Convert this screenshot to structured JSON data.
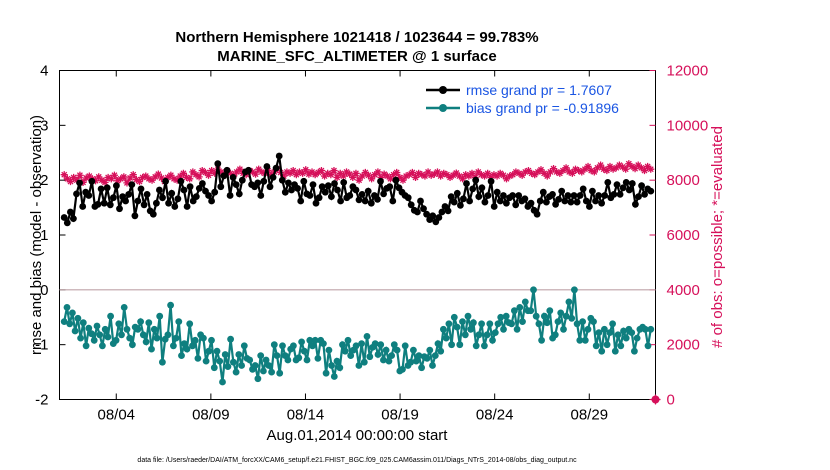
{
  "chart_data": {
    "type": "line",
    "title": "Northern Hemisphere 1021418 / 1023644 = 99.783%",
    "subtitle": "MARINE_SFC_ALTIMETER @ 1 surface",
    "xlabel": "Aug.01,2014 00:00:00 start",
    "ylabel_left": "rmse and bias (model - observation)",
    "ylabel_right": "# of obs: o=possible; *=evaluated",
    "xlim": [
      1.0,
      32.5
    ],
    "ylim_left": [
      -2,
      4
    ],
    "ylim_right": [
      0,
      12000
    ],
    "x_ticks": [
      4,
      9,
      14,
      19,
      24,
      29
    ],
    "x_tick_labels": [
      "08/04",
      "08/09",
      "08/14",
      "08/19",
      "08/24",
      "08/29"
    ],
    "y_ticks_left": [
      -2,
      -1,
      0,
      1,
      2,
      3,
      4
    ],
    "y_ticks_right": [
      0,
      2000,
      4000,
      6000,
      8000,
      10000,
      12000
    ],
    "zero_line": 0,
    "colors": {
      "rmse": "#000000",
      "bias": "#0f7f7f",
      "obs": "#d6105a",
      "legend_text": "#1a55e3"
    },
    "legend_position": "top-right",
    "series": [
      {
        "name": "rmse grand pr = 1.7607",
        "axis": "left",
        "values": [
          1.32,
          1.22,
          1.42,
          1.3,
          1.75,
          1.95,
          1.52,
          1.78,
          1.72,
          1.98,
          1.52,
          1.56,
          1.84,
          1.58,
          1.86,
          1.55,
          1.68,
          1.9,
          1.48,
          1.7,
          1.62,
          1.74,
          1.92,
          1.35,
          1.62,
          1.84,
          1.55,
          1.74,
          1.44,
          1.38,
          1.58,
          1.82,
          1.68,
          1.98,
          1.58,
          1.76,
          1.52,
          1.66,
          1.98,
          1.82,
          1.52,
          1.88,
          1.62,
          1.7,
          1.85,
          1.94,
          1.8,
          1.72,
          1.62,
          1.78,
          2.3,
          1.88,
          2.08,
          2.18,
          1.72,
          2.05,
          1.92,
          1.75,
          2.0,
          2.15,
          2.18,
          1.92,
          1.88,
          1.95,
          1.72,
          1.98,
          2.25,
          1.88,
          2.05,
          2.22,
          2.44,
          2.0,
          1.78,
          1.95,
          1.82,
          1.92,
          1.85,
          1.62,
          1.98,
          1.75,
          1.72,
          1.92,
          1.58,
          1.68,
          1.88,
          1.78,
          1.9,
          1.7,
          1.94,
          1.82,
          1.62,
          1.96,
          1.68,
          1.72,
          1.88,
          1.82,
          1.64,
          1.74,
          1.62,
          1.8,
          1.58,
          1.72,
          1.65,
          1.98,
          1.75,
          1.85,
          1.88,
          1.62,
          2.0,
          1.86,
          1.78,
          1.72,
          1.68,
          1.55,
          1.45,
          1.42,
          1.62,
          1.48,
          1.38,
          1.28,
          1.35,
          1.24,
          1.32,
          1.42,
          1.52,
          1.44,
          1.7,
          1.6,
          1.76,
          1.54,
          1.66,
          1.94,
          1.62,
          1.84,
          2.0,
          1.7,
          1.86,
          1.6,
          1.72,
          1.98,
          1.52,
          1.78,
          1.62,
          1.72,
          1.58,
          1.68,
          1.72,
          1.55,
          1.72,
          1.62,
          1.66,
          1.52,
          1.58,
          1.45,
          1.38,
          1.62,
          1.78,
          1.6,
          1.7,
          1.74,
          1.56,
          1.65,
          1.8,
          1.62,
          1.72,
          1.6,
          1.72,
          1.6,
          1.72,
          1.84,
          1.62,
          1.52,
          1.8,
          1.62,
          1.72,
          1.58,
          1.72,
          1.96,
          1.68,
          1.74,
          1.92,
          1.74,
          1.86,
          1.96,
          1.82,
          1.94,
          1.56,
          1.7,
          1.9,
          1.74,
          1.84,
          1.8
        ]
      },
      {
        "name": "bias grand pr = -0.91896",
        "axis": "left",
        "values": [
          -0.58,
          -0.32,
          -0.62,
          -0.42,
          -0.75,
          -0.52,
          -0.88,
          -0.6,
          -1.02,
          -0.7,
          -0.8,
          -0.92,
          -0.66,
          -0.82,
          -1.02,
          -0.72,
          -0.86,
          -0.48,
          -0.98,
          -0.92,
          -0.62,
          -0.82,
          -0.32,
          -0.72,
          -0.88,
          -1.0,
          -0.68,
          -0.72,
          -0.58,
          -0.82,
          -0.95,
          -0.6,
          -1.08,
          -0.72,
          -0.88,
          -0.48,
          -1.32,
          -0.9,
          -0.82,
          -0.28,
          -1.02,
          -0.88,
          -0.58,
          -1.2,
          -0.98,
          -1.08,
          -0.62,
          -1.02,
          -0.92,
          -1.25,
          -0.82,
          -0.88,
          -1.3,
          -1.12,
          -0.92,
          -1.42,
          -1.12,
          -1.3,
          -1.68,
          -1.18,
          -1.4,
          -0.9,
          -1.32,
          -1.5,
          -1.18,
          -1.38,
          -1.02,
          -1.25,
          -1.28,
          -1.45,
          -1.38,
          -1.62,
          -1.2,
          -1.48,
          -1.28,
          -1.38,
          -1.5,
          -1.0,
          -1.2,
          -1.52,
          -1.02,
          -1.2,
          -1.28,
          -1.08,
          -1.02,
          -1.28,
          -1.24,
          -0.95,
          -1.12,
          -1.28,
          -0.92,
          -1.02,
          -0.92,
          -1.25,
          -0.92,
          -0.98,
          -1.52,
          -1.1,
          -1.38,
          -1.58,
          -1.3,
          -1.42,
          -1.0,
          -1.12,
          -0.92,
          -1.2,
          -1.1,
          -1.02,
          -1.38,
          -0.98,
          -1.32,
          -0.85,
          -1.22,
          -1.05,
          -0.98,
          -1.18,
          -1.0,
          -1.28,
          -1.1,
          -1.3,
          -1.2,
          -1.0,
          -1.1,
          -1.48,
          -1.45,
          -1.02,
          -1.38,
          -1.32,
          -1.1,
          -1.3,
          -1.2,
          -1.42,
          -1.22,
          -1.25,
          -1.1,
          -1.38,
          -1.2,
          -0.98,
          -1.12,
          -0.72,
          -0.88,
          -0.62,
          -1.0,
          -0.5,
          -0.68,
          -1.0,
          -0.58,
          -0.82,
          -0.48,
          -0.72,
          -0.6,
          -1.02,
          -0.82,
          -0.62,
          -1.02,
          -0.82,
          -0.62,
          -0.92,
          -0.78,
          -0.62,
          -0.5,
          -0.72,
          -0.48,
          -0.6,
          -0.62,
          -0.38,
          -0.72,
          -0.32,
          -0.58,
          -0.22,
          -0.38,
          -0.38,
          0.0,
          -0.48,
          -0.62,
          -0.92,
          -0.48,
          -0.6,
          -0.38,
          -0.88,
          -0.82,
          -0.58,
          -0.42,
          -0.72,
          -0.48,
          -0.22,
          -0.52,
          0.0,
          -0.62,
          -0.92,
          -0.58,
          -0.92,
          -0.72,
          -0.52,
          -0.58,
          -1.02,
          -0.78,
          -1.12,
          -0.72,
          -1.0,
          -0.78,
          -0.62,
          -1.12,
          -0.82,
          -1.02,
          -0.75,
          -0.88,
          -0.72,
          -0.78,
          -1.12,
          -0.88,
          -0.72,
          -0.68,
          -0.72,
          -1.02,
          -0.72
        ]
      },
      {
        "name": "# of obs evaluated",
        "axis": "right",
        "values": [
          8200,
          8050,
          7950,
          8100,
          8000,
          8180,
          7920,
          8080,
          8150,
          8050,
          7980,
          8120,
          8000,
          7920,
          8100,
          8050,
          8180,
          7980,
          8050,
          8120,
          7900,
          8080,
          8200,
          8020,
          7950,
          8100,
          8150,
          8050,
          8000,
          8120,
          8220,
          8080,
          7950,
          8100,
          8180,
          8050,
          8000,
          8150,
          8250,
          8100,
          8050,
          8300,
          8200,
          8120,
          8350,
          8280,
          8180,
          8350,
          8250,
          8400,
          8300,
          8200,
          8350,
          8250,
          8150,
          8300,
          8400,
          8250,
          8200,
          8350,
          8300,
          8220,
          8400,
          8300,
          8250,
          8350,
          8200,
          8300,
          8420,
          8280,
          8150,
          8300,
          8250,
          8350,
          8200,
          8300,
          8250,
          8380,
          8220,
          8300,
          8200,
          8280,
          8350,
          8150,
          8250,
          8200,
          8350,
          8100,
          8250,
          8150,
          8300,
          8220,
          8100,
          8250,
          8000,
          8150,
          8280,
          8180,
          8050,
          8200,
          8300,
          8100,
          8220,
          8150,
          8050,
          8200,
          8280,
          8100,
          8000,
          8150,
          8200,
          8280,
          8100,
          8250,
          8200,
          8150,
          8300,
          8180,
          8220,
          8300,
          8150,
          8250,
          8200,
          8100,
          8180,
          8260,
          8150,
          8050,
          8200,
          8150,
          8250,
          8100,
          8300,
          8200,
          8150,
          8250,
          8100,
          8200,
          8150,
          8250,
          8180,
          8050,
          8150,
          8200,
          8300,
          8250,
          8180,
          8300,
          8350,
          8250,
          8200,
          8300,
          8380,
          8250,
          8150,
          8300,
          8420,
          8300,
          8250,
          8350,
          8450,
          8300,
          8250,
          8400,
          8350,
          8300,
          8400,
          8500,
          8350,
          8300,
          8450,
          8550,
          8400,
          8350,
          8500,
          8400,
          8450,
          8550,
          8480,
          8400,
          8600,
          8500,
          8420,
          8550,
          8450,
          8350,
          8500,
          8400
        ]
      }
    ],
    "footer": "data file: /Users/raeder/DAI/ATM_forcXX/CAM6_setup/f.e21.FHIST_BGC.f09_025.CAM6assim.011/Diags_NTrS_2014-08/obs_diag_output.nc"
  }
}
